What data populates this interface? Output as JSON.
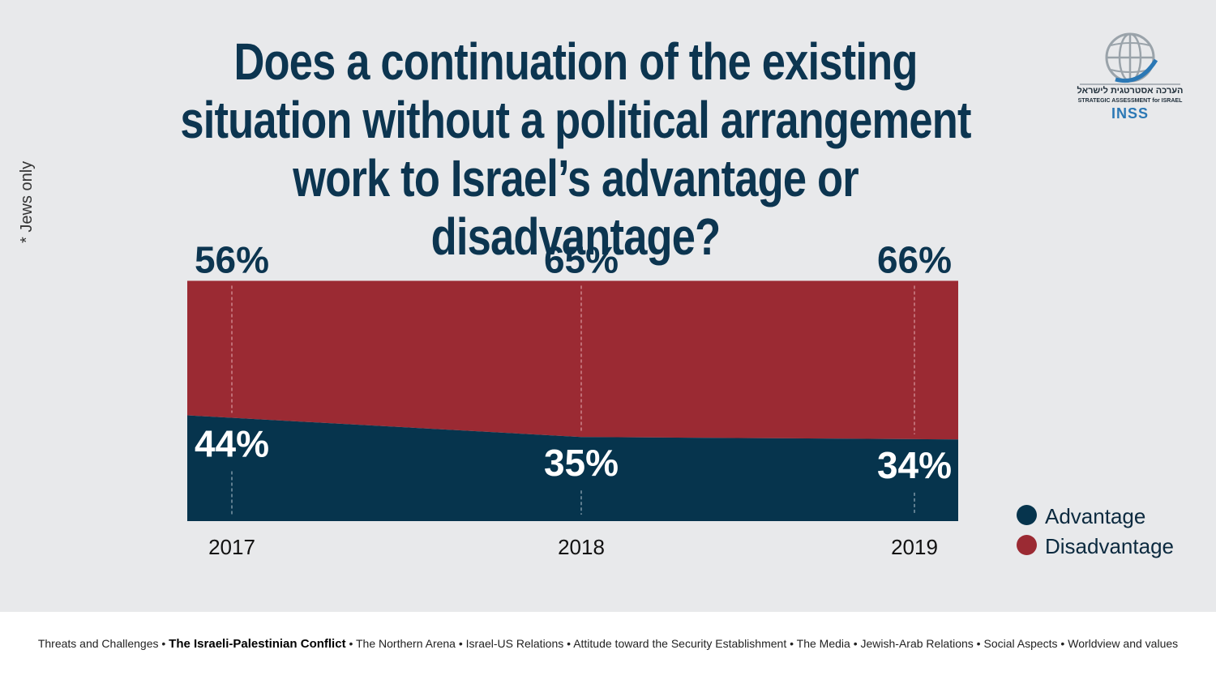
{
  "title": "Does a continuation of the existing situation without a political arrangement work to Israel’s advantage or disadvantage?",
  "side_note": "* Jews only",
  "logo": {
    "hebrew": "הערכה אסטרטגית לישראל",
    "english": "STRATEGIC ASSESSMENT for ISRAEL",
    "brand": "INSS"
  },
  "colors": {
    "advantage": "#06344d",
    "disadvantage": "#9b2a33",
    "title": "#0c3550",
    "background": "#e8e9eb"
  },
  "chart_data": {
    "type": "area",
    "stacked": true,
    "x": [
      "2017",
      "2018",
      "2019"
    ],
    "series": [
      {
        "name": "Advantage",
        "values": [
          44,
          35,
          34
        ],
        "labels": [
          "44%",
          "35%",
          "34%"
        ]
      },
      {
        "name": "Disadvantage",
        "values": [
          56,
          65,
          66
        ],
        "labels": [
          "56%",
          "65%",
          "66%"
        ]
      }
    ],
    "legend_position": "bottom-right",
    "grid": false
  },
  "legend": [
    {
      "label": "Advantage",
      "color": "#06344d"
    },
    {
      "label": "Disadvantage",
      "color": "#9b2a33"
    }
  ],
  "footer": {
    "items": [
      {
        "text": "Threats and Challenges",
        "bold": false
      },
      {
        "text": "The Israeli-Palestinian Conflict",
        "bold": true
      },
      {
        "text": "The Northern  Arena",
        "bold": false
      },
      {
        "text": "Israel-US Relations",
        "bold": false
      },
      {
        "text": "Attitude toward the Security Establishment",
        "bold": false
      },
      {
        "text": "The Media",
        "bold": false
      },
      {
        "text": "Jewish-Arab Relations",
        "bold": false
      },
      {
        "text": "Social Aspects",
        "bold": false
      },
      {
        "text": "Worldview and values",
        "bold": false
      }
    ],
    "separator": "•"
  }
}
